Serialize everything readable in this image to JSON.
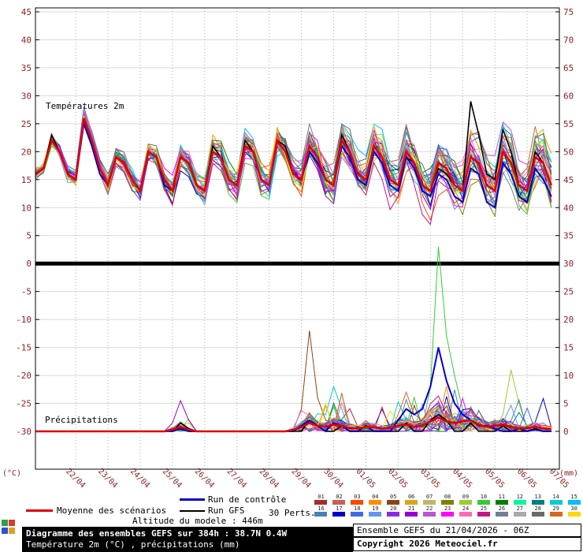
{
  "chart_data": {
    "type": "line",
    "title": "Diagramme des ensembles GEFS sur 384h : 38.7N 0.4W",
    "subtitle": "Température 2m (°C) , précipitations (mm)",
    "panel_labels": {
      "temperature": "Températures 2m",
      "precipitation": "Précipitations"
    },
    "left_axis": {
      "unit": "(°C)",
      "min": -30,
      "max": 45,
      "step": 5
    },
    "right_axis": {
      "unit": "(mm)",
      "min": 0,
      "max": 75,
      "step": 5
    },
    "x_dates": [
      "22/04",
      "23/04",
      "24/04",
      "25/04",
      "26/04",
      "27/04",
      "28/04",
      "29/04",
      "30/04",
      "01/05",
      "02/05",
      "03/05",
      "04/05",
      "05/05",
      "06/05",
      "07/05"
    ],
    "hours_total": 390,
    "step_hours": 6,
    "colors": {
      "mean": "#dd0000",
      "control": "#0000cc",
      "gfs": "#000000",
      "axis_text": "#8b2323",
      "grid": "#d9d9d9",
      "grid_v": "#aaaaaa"
    },
    "series": {
      "mean_temp": {
        "name": "Moyenne des scénarios",
        "values": [
          16,
          17,
          22,
          20,
          16,
          15,
          26,
          22,
          17,
          14,
          19,
          18,
          15,
          13,
          20,
          19,
          15,
          13,
          19,
          18,
          14,
          13,
          20,
          19,
          15,
          14,
          21,
          20,
          15,
          14,
          22,
          20,
          16,
          15,
          21,
          19,
          15,
          14,
          22,
          20,
          16,
          15,
          21,
          19,
          15,
          14,
          20,
          18,
          14,
          13,
          18,
          17,
          14,
          13,
          19,
          18,
          14,
          13,
          20,
          18,
          14,
          13,
          19,
          18,
          14
        ]
      },
      "control_temp": {
        "name": "Run de contrôle",
        "values": [
          16,
          17,
          22,
          20,
          16,
          15,
          25,
          21,
          16,
          14,
          19,
          18,
          15,
          13,
          20,
          19,
          14,
          13,
          19,
          18,
          14,
          13,
          20,
          19,
          15,
          14,
          21,
          20,
          15,
          14,
          22,
          20,
          16,
          15,
          20,
          18,
          15,
          14,
          21,
          19,
          15,
          14,
          20,
          18,
          14,
          13,
          19,
          17,
          13,
          12,
          16,
          15,
          12,
          11,
          17,
          16,
          11,
          10,
          18,
          16,
          12,
          11,
          17,
          15,
          12
        ]
      },
      "gfs_temp": {
        "name": "Run GFS",
        "values": [
          16,
          17,
          23,
          20,
          16,
          15,
          26,
          22,
          17,
          14,
          19,
          18,
          15,
          13,
          20,
          19,
          15,
          13,
          19,
          18,
          14,
          13,
          21,
          19,
          15,
          14,
          22,
          20,
          15,
          14,
          22,
          21,
          16,
          15,
          21,
          19,
          15,
          14,
          23,
          20,
          16,
          15,
          21,
          19,
          15,
          14,
          19,
          18,
          14,
          13,
          17,
          16,
          14,
          13,
          29,
          23,
          16,
          15,
          24,
          20,
          14,
          13,
          20,
          18,
          14
        ]
      },
      "mean_precip": [
        0,
        0,
        0,
        0,
        0,
        0,
        0,
        0,
        0,
        0,
        0,
        0,
        0,
        0,
        0,
        0,
        0,
        0.3,
        0.8,
        0.3,
        0,
        0,
        0,
        0,
        0,
        0,
        0,
        0,
        0,
        0,
        0,
        0,
        0.3,
        0.8,
        1.5,
        1,
        0.8,
        1.2,
        1,
        0.6,
        0.5,
        0.8,
        0.7,
        0.5,
        0.6,
        1,
        1.2,
        0.8,
        1,
        1.8,
        2.5,
        1.8,
        1.5,
        1.8,
        2,
        1.2,
        0.8,
        1,
        1.2,
        0.8,
        0.5,
        0.6,
        0.8,
        0.5,
        0.4
      ],
      "control_precip": [
        0,
        0,
        0,
        0,
        0,
        0,
        0,
        0,
        0,
        0,
        0,
        0,
        0,
        0,
        0,
        0,
        0,
        0,
        0.5,
        0,
        0,
        0,
        0,
        0,
        0,
        0,
        0,
        0,
        0,
        0,
        0,
        0,
        0,
        1,
        2,
        1,
        0,
        1.5,
        1,
        0,
        0,
        1,
        0,
        0,
        0,
        2,
        4,
        3,
        4,
        8,
        15,
        9,
        5,
        3,
        2,
        1,
        1,
        0.5,
        0,
        0,
        0.5,
        0,
        0.3,
        0,
        0
      ],
      "gfs_precip": [
        0,
        0,
        0,
        0,
        0,
        0,
        0,
        0,
        0,
        0,
        0,
        0,
        0,
        0,
        0,
        0,
        0,
        0,
        1.5,
        0.5,
        0,
        0,
        0,
        0,
        0,
        0,
        0,
        0,
        0,
        0,
        0,
        0,
        0,
        0,
        2,
        1,
        0,
        0,
        1,
        0,
        0,
        0,
        0,
        0,
        0,
        0,
        1.5,
        0,
        0,
        2,
        3,
        2,
        0,
        0,
        1.5,
        0,
        0,
        0,
        1,
        0,
        0,
        0,
        0.5,
        0,
        0
      ]
    },
    "members": {
      "count": 30,
      "colors": [
        "#a52a2a",
        "#cd5c5c",
        "#ff4500",
        "#ff8c00",
        "#8b4513",
        "#daa520",
        "#bdb76b",
        "#808000",
        "#9acd32",
        "#32cd32",
        "#008000",
        "#00fa9a",
        "#008080",
        "#00ced1",
        "#00bfff",
        "#4682b4",
        "#0000cd",
        "#4169e1",
        "#6495ed",
        "#8a2be2",
        "#9400d3",
        "#ba55d3",
        "#ff00ff",
        "#ff69b4",
        "#c71585",
        "#708090",
        "#a9a9a9",
        "#696969",
        "#d2691e",
        "#ffd700"
      ],
      "precip_events": [
        {
          "member": 5,
          "points": {
            "33": 4,
            "34": 18,
            "35": 6,
            "36": 2
          }
        },
        {
          "member": 10,
          "points": {
            "49": 8,
            "50": 33,
            "51": 17,
            "52": 10,
            "53": 4
          }
        },
        {
          "member": 9,
          "points": {
            "58": 3,
            "59": 11,
            "60": 5
          }
        },
        {
          "member": 21,
          "points": {
            "17": 1.5,
            "18": 5.5,
            "19": 2
          }
        },
        {
          "member": 14,
          "points": {
            "36": 3,
            "37": 8,
            "38": 4
          }
        },
        {
          "member": 29,
          "points": {
            "45": 3,
            "46": 7,
            "47": 3
          }
        }
      ]
    }
  },
  "legend": {
    "mean_label": "Moyenne des scénarios",
    "control_label": "Run de contrôle",
    "gfs_label": "Run GFS",
    "perts_label": "30 Perts.",
    "member_numbers": [
      "01",
      "02",
      "03",
      "04",
      "05",
      "06",
      "07",
      "08",
      "09",
      "10",
      "11",
      "12",
      "13",
      "14",
      "15",
      "16",
      "17",
      "18",
      "19",
      "20",
      "21",
      "22",
      "23",
      "24",
      "25",
      "26",
      "27",
      "28",
      "29",
      "30"
    ]
  },
  "footer": {
    "altitude": "Altitude du modele : 446m",
    "title": "Diagramme des ensembles GEFS sur 384h : 38.7N 0.4W",
    "subtitle": "Température 2m (°C) , précipitations (mm)",
    "run_info": "Ensemble GEFS du 21/04/2026 - 06Z",
    "copyright": "Copyright 2026 Meteociel.fr"
  }
}
